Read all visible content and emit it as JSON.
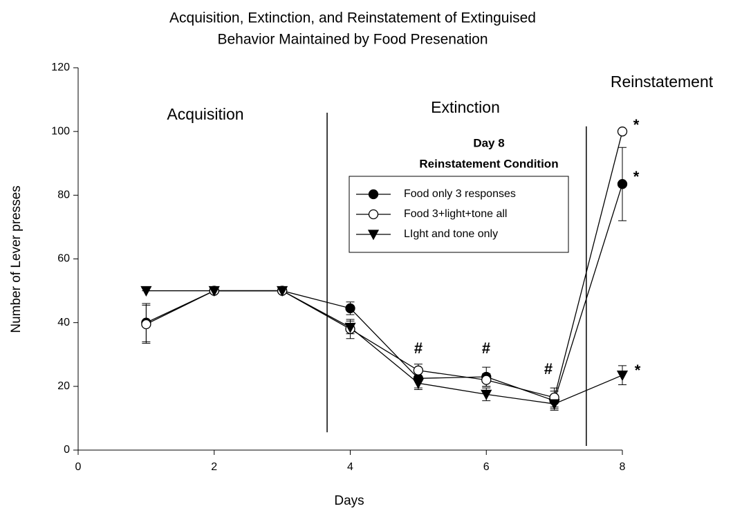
{
  "chart_data": {
    "type": "line",
    "title": [
      "Acquisition, Extinction, and Reinstatement of Extinguised",
      "Behavior Maintained by Food Presenation"
    ],
    "x_label": "Days",
    "y_label": "Number of Lever presses",
    "x": [
      1,
      2,
      3,
      4,
      5,
      6,
      7,
      8
    ],
    "series": [
      {
        "name": "Food only 3 responses",
        "color": "#000000",
        "marker": "filled-circle",
        "values": [
          40,
          50,
          50,
          44.5,
          22.5,
          23,
          15.5,
          83.5
        ],
        "errors": [
          6,
          0,
          0,
          2,
          3,
          3,
          3,
          11.5
        ]
      },
      {
        "name": "Food 3+light+tone all",
        "color": "#000000",
        "marker": "open-circle",
        "values": [
          39.5,
          50,
          50,
          38,
          25,
          22,
          16.5,
          100
        ],
        "errors": [
          6,
          0,
          0,
          3,
          2,
          2,
          3,
          0
        ]
      },
      {
        "name": "LIght and tone only",
        "color": "#000000",
        "marker": "triangle-down",
        "values": [
          50,
          50,
          50,
          38.5,
          21,
          17.5,
          14.5,
          23.5
        ],
        "errors": [
          0,
          0,
          0,
          2,
          2,
          2,
          1.5,
          3
        ]
      }
    ],
    "legend_title": [
      "Day 8",
      "Reinstatement Condition"
    ],
    "phase_labels": [
      "Acquisition",
      "Extinction",
      "Reinstatement"
    ],
    "phase_lines": [
      {
        "x": 3.66,
        "ymin": 5.6,
        "ymax": 105.9
      },
      {
        "x": 7.47,
        "ymin": 1.3,
        "ymax": 101.6
      }
    ],
    "annotations": [
      "#",
      "#",
      "#",
      "*",
      "*",
      "*"
    ],
    "xlim": [
      0,
      8
    ],
    "ylim": [
      0,
      120
    ],
    "xticks": [
      0,
      2,
      4,
      6,
      8
    ],
    "yticks": [
      0,
      20,
      40,
      60,
      80,
      100,
      120
    ]
  }
}
